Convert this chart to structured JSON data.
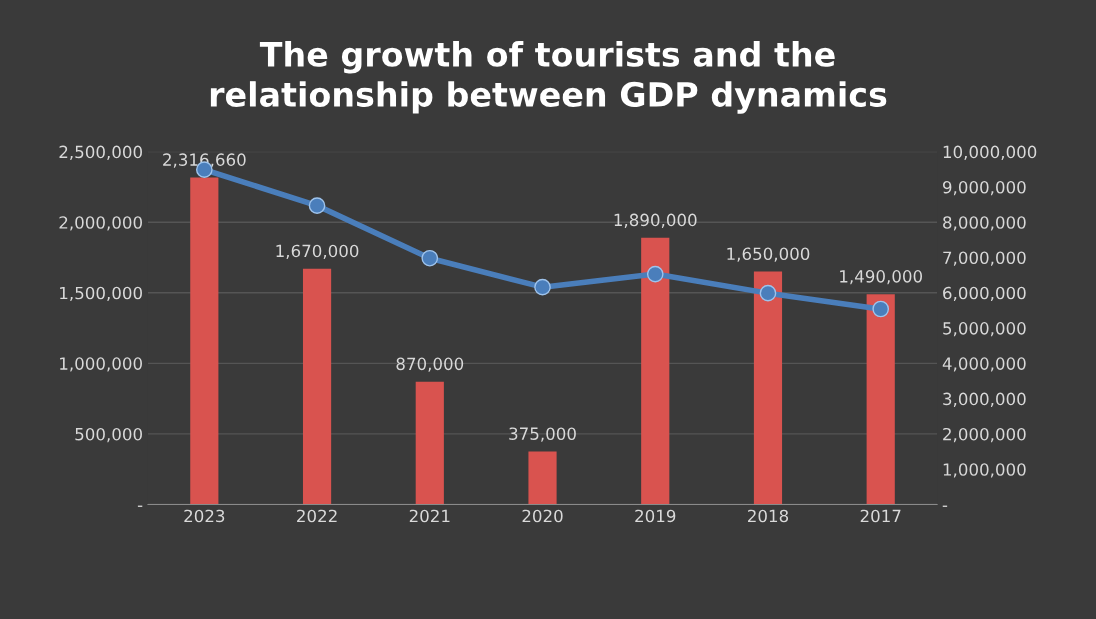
{
  "chart_data": {
    "type": "bar",
    "title": "The growth of tourists and the\nrelationship between GDP dynamics",
    "categories": [
      "2023",
      "2022",
      "2021",
      "2020",
      "2019",
      "2018",
      "2017"
    ],
    "series": [
      {
        "color": "#d9534f",
        "values": [
          2316660,
          1670000,
          870000,
          375000,
          1890000,
          1650000,
          1490000
        ],
        "value_labels": [
          "2,316,660",
          "1,670,000",
          "870,000",
          "375,000",
          "1,890,000",
          "1,650,000",
          "1,490,000"
        ]
      },
      {
        "type": "line",
        "axis": "y2",
        "color": "#4a7ebb",
        "marker": "circle",
        "values": [
          9490000,
          8470000,
          6980000,
          6160000,
          6530000,
          5990000,
          5540000
        ]
      }
    ],
    "ylim": [
      0,
      2500000
    ],
    "yticks": [
      {
        "value": 0,
        "label": "-"
      },
      {
        "value": 500000,
        "label": "500,000"
      },
      {
        "value": 1000000,
        "label": "1,000,000"
      },
      {
        "value": 1500000,
        "label": "1,500,000"
      },
      {
        "value": 2000000,
        "label": "2,000,000"
      },
      {
        "value": 2500000,
        "label": "2,500,000"
      }
    ],
    "y2lim": [
      0,
      10000000
    ],
    "y2ticks": [
      {
        "value": 0,
        "label": "-"
      },
      {
        "value": 1000000,
        "label": "1,000,000"
      },
      {
        "value": 2000000,
        "label": "2,000,000"
      },
      {
        "value": 3000000,
        "label": "3,000,000"
      },
      {
        "value": 4000000,
        "label": "4,000,000"
      },
      {
        "value": 5000000,
        "label": "5,000,000"
      },
      {
        "value": 6000000,
        "label": "6,000,000"
      },
      {
        "value": 7000000,
        "label": "7,000,000"
      },
      {
        "value": 8000000,
        "label": "8,000,000"
      },
      {
        "value": 9000000,
        "label": "9,000,000"
      },
      {
        "value": 10000000,
        "label": "10,000,000"
      }
    ],
    "grid": "y"
  }
}
